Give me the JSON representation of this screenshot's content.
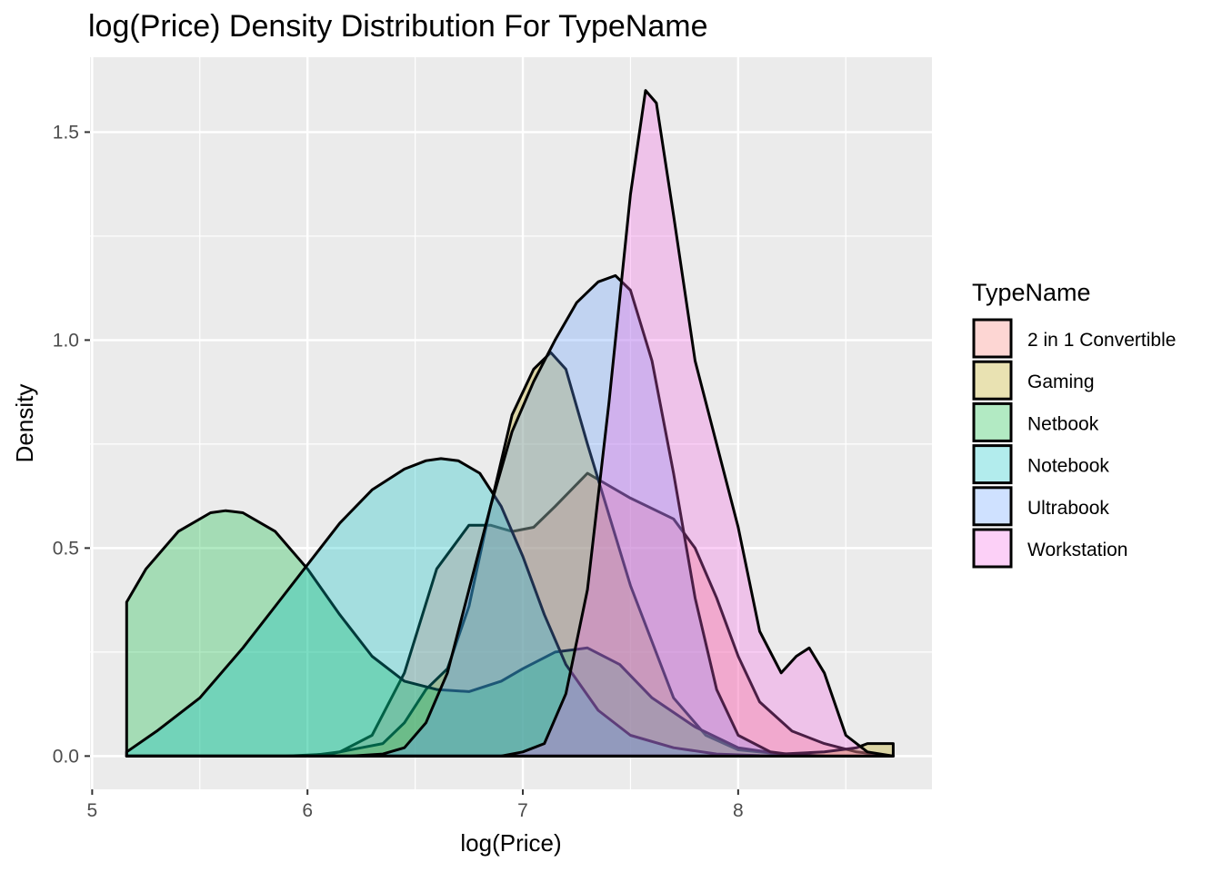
{
  "chart_data": {
    "type": "area",
    "title": "log(Price) Density Distribution For TypeName",
    "xlabel": "log(Price)",
    "ylabel": "Density",
    "xlim": [
      4.99,
      8.9
    ],
    "ylim": [
      -0.08,
      1.68
    ],
    "x_ticks": [
      5,
      6,
      7,
      8
    ],
    "x_tick_labels": [
      "5",
      "6",
      "7",
      "8"
    ],
    "y_ticks": [
      0,
      0.5,
      1,
      1.5
    ],
    "y_tick_labels": [
      "0.0",
      "0.5",
      "1.0",
      "1.5"
    ],
    "grid": true,
    "background": "#ebebeb",
    "fill_opacity": 0.3,
    "legend": {
      "title": "TypeName",
      "position": "right",
      "entries": [
        "2 in 1 Convertible",
        "Gaming",
        "Netbook",
        "Notebook",
        "Ultrabook",
        "Workstation"
      ]
    },
    "series": [
      {
        "name": "2 in 1 Convertible",
        "color": "#f8766d",
        "x": [
          5.16,
          5.5,
          5.9,
          6.0,
          6.15,
          6.3,
          6.45,
          6.6,
          6.75,
          6.85,
          6.95,
          7.05,
          7.15,
          7.3,
          7.5,
          7.7,
          7.8,
          7.9,
          8.0,
          8.1,
          8.25,
          8.4,
          8.55,
          8.72
        ],
        "y": [
          0.0,
          0.0,
          0.0,
          0.0,
          0.01,
          0.05,
          0.2,
          0.45,
          0.555,
          0.555,
          0.54,
          0.55,
          0.6,
          0.68,
          0.62,
          0.57,
          0.5,
          0.38,
          0.24,
          0.13,
          0.06,
          0.03,
          0.01,
          0.0
        ]
      },
      {
        "name": "Gaming",
        "color": "#b79f00",
        "x": [
          5.16,
          5.9,
          6.1,
          6.25,
          6.35,
          6.45,
          6.55,
          6.65,
          6.75,
          6.85,
          6.95,
          7.05,
          7.13,
          7.2,
          7.3,
          7.5,
          7.7,
          7.85,
          8.0,
          8.2,
          8.4,
          8.55,
          8.6,
          8.72
        ],
        "y": [
          0.0,
          0.0,
          0.005,
          0.02,
          0.03,
          0.08,
          0.16,
          0.21,
          0.36,
          0.6,
          0.82,
          0.93,
          0.97,
          0.93,
          0.75,
          0.41,
          0.14,
          0.05,
          0.015,
          0.005,
          0.01,
          0.02,
          0.03,
          0.03
        ]
      },
      {
        "name": "Netbook",
        "color": "#00ba38",
        "x": [
          5.16,
          5.25,
          5.4,
          5.55,
          5.62,
          5.7,
          5.85,
          6.0,
          6.15,
          6.3,
          6.45,
          6.6,
          6.75,
          6.9,
          7.0,
          7.15,
          7.3,
          7.45,
          7.6,
          7.8,
          8.0,
          8.2,
          8.4
        ],
        "y": [
          0.37,
          0.45,
          0.54,
          0.585,
          0.59,
          0.585,
          0.54,
          0.45,
          0.34,
          0.24,
          0.18,
          0.16,
          0.155,
          0.18,
          0.21,
          0.25,
          0.26,
          0.22,
          0.14,
          0.07,
          0.02,
          0.005,
          0.0
        ]
      },
      {
        "name": "Notebook",
        "color": "#00bfc4",
        "x": [
          5.16,
          5.3,
          5.5,
          5.7,
          5.85,
          6.0,
          6.15,
          6.3,
          6.45,
          6.55,
          6.62,
          6.7,
          6.8,
          6.9,
          7.0,
          7.1,
          7.2,
          7.35,
          7.5,
          7.7,
          7.9,
          8.1,
          8.3
        ],
        "y": [
          0.01,
          0.06,
          0.14,
          0.26,
          0.36,
          0.46,
          0.56,
          0.64,
          0.69,
          0.71,
          0.715,
          0.71,
          0.68,
          0.6,
          0.48,
          0.34,
          0.22,
          0.11,
          0.05,
          0.02,
          0.005,
          0.001,
          0.0
        ]
      },
      {
        "name": "Ultrabook",
        "color": "#619cff",
        "x": [
          5.16,
          6.2,
          6.35,
          6.45,
          6.55,
          6.65,
          6.75,
          6.85,
          6.95,
          7.05,
          7.15,
          7.25,
          7.35,
          7.43,
          7.5,
          7.6,
          7.7,
          7.8,
          7.9,
          8.0,
          8.15,
          8.3
        ],
        "y": [
          0.0,
          0.0,
          0.005,
          0.02,
          0.08,
          0.2,
          0.4,
          0.6,
          0.78,
          0.9,
          1.0,
          1.09,
          1.14,
          1.155,
          1.12,
          0.95,
          0.68,
          0.38,
          0.16,
          0.05,
          0.01,
          0.0
        ]
      },
      {
        "name": "Workstation",
        "color": "#f564e3",
        "x": [
          5.16,
          6.9,
          7.0,
          7.1,
          7.2,
          7.3,
          7.4,
          7.5,
          7.57,
          7.62,
          7.7,
          7.8,
          7.9,
          8.0,
          8.1,
          8.2,
          8.27,
          8.33,
          8.4,
          8.5,
          8.6,
          8.72
        ],
        "y": [
          0.0,
          0.0,
          0.01,
          0.03,
          0.15,
          0.4,
          0.85,
          1.35,
          1.6,
          1.57,
          1.3,
          0.95,
          0.75,
          0.55,
          0.3,
          0.2,
          0.24,
          0.26,
          0.2,
          0.05,
          0.01,
          0.0
        ]
      }
    ]
  }
}
